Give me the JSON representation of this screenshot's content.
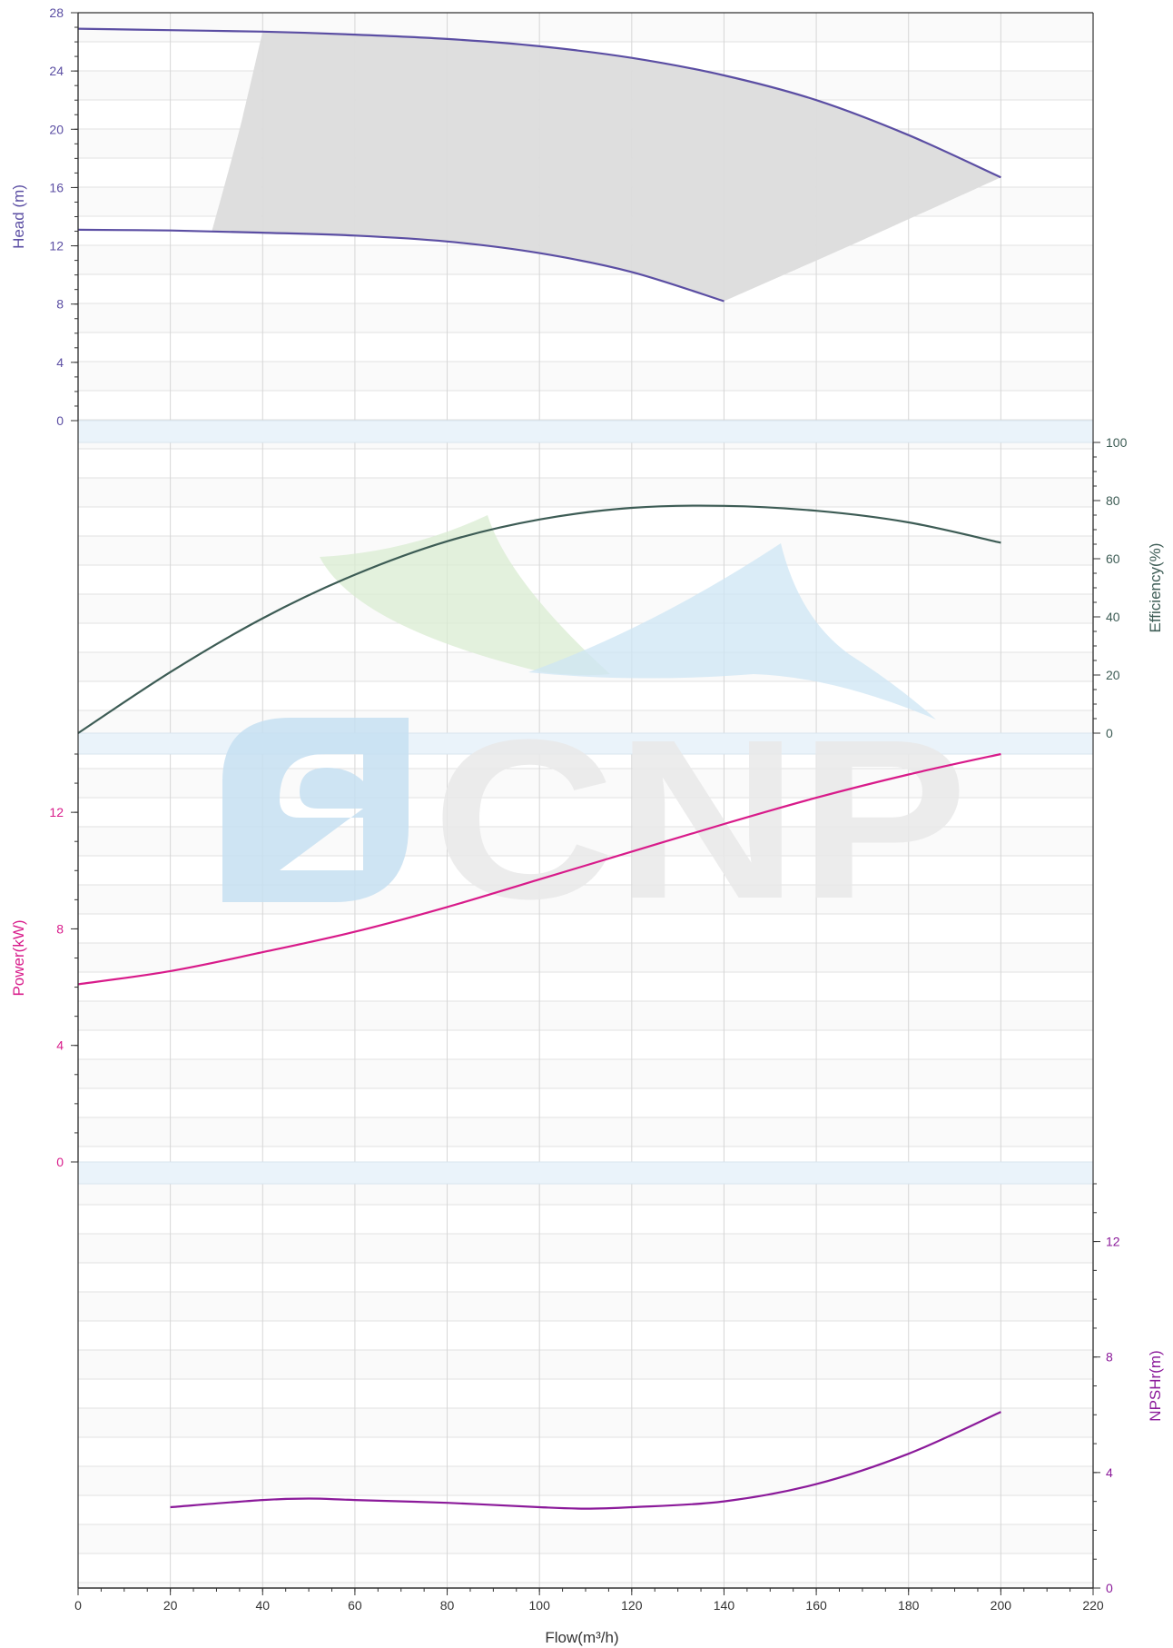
{
  "chart_data": {
    "type": "line",
    "x_axis": {
      "label": "Flow(m³/h)",
      "range": [
        0,
        220
      ],
      "ticks": [
        0,
        20,
        40,
        60,
        80,
        100,
        120,
        140,
        160,
        180,
        200,
        220
      ]
    },
    "panels": [
      {
        "id": "head",
        "ylabel": "Head (m)",
        "axis_side": "left",
        "color": "#5b4ea3",
        "ylim": [
          0,
          28
        ],
        "ticks": [
          0,
          4,
          8,
          12,
          16,
          20,
          24,
          28
        ],
        "series": [
          {
            "x": [
              0,
              20,
              40,
              60,
              80,
              100,
              120,
              140,
              160,
              180,
              200
            ],
            "y": [
              26.9,
              26.8,
              26.7,
              26.5,
              26.2,
              25.7,
              24.9,
              23.7,
              22.0,
              19.6,
              16.7
            ]
          },
          {
            "x": [
              0,
              20,
              40,
              60,
              80,
              100,
              120,
              140
            ],
            "y": [
              13.1,
              13.05,
              12.9,
              12.7,
              12.3,
              11.5,
              10.2,
              8.2
            ]
          }
        ],
        "operating_region": {
          "color": "#dcdcdc",
          "upper": {
            "x": [
              40,
              60,
              80,
              100,
              120,
              140,
              160,
              180,
              200
            ],
            "y": [
              26.7,
              26.5,
              26.2,
              25.7,
              24.9,
              23.7,
              22.0,
              19.6,
              16.7
            ]
          },
          "right_edge": {
            "x": [
              200,
              170,
              140
            ],
            "y": [
              16.7,
              12.4,
              8.2
            ]
          },
          "lower": {
            "x": [
              140,
              120,
              100,
              80,
              60,
              40,
              29
            ],
            "y": [
              8.2,
              10.2,
              11.5,
              12.3,
              12.7,
              12.9,
              13.0
            ]
          },
          "left_edge": {
            "x": [
              29,
              35,
              40
            ],
            "y": [
              13.0,
              20,
              26.7
            ]
          }
        }
      },
      {
        "id": "efficiency",
        "ylabel": "Efficiency(%)",
        "axis_side": "right",
        "color": "#3d5c55",
        "ylim": [
          0,
          100
        ],
        "ticks": [
          0,
          20,
          40,
          60,
          80,
          100
        ],
        "series": [
          {
            "x": [
              0,
              20,
              40,
              60,
              80,
              100,
              120,
              140,
              160,
              180,
              200
            ],
            "y": [
              0,
              21,
              39.5,
              54.5,
              66,
              73.5,
              77.5,
              78.2,
              76.5,
              72.5,
              65.5
            ]
          }
        ]
      },
      {
        "id": "power",
        "ylabel": "Power(kW)",
        "axis_side": "left",
        "color": "#d81b8a",
        "ylim": [
          0,
          14
        ],
        "ticks": [
          0,
          4,
          8,
          12
        ],
        "series": [
          {
            "x": [
              0,
              20,
              40,
              60,
              80,
              100,
              120,
              140,
              160,
              180,
              200
            ],
            "y": [
              6.1,
              6.55,
              7.2,
              7.9,
              8.75,
              9.7,
              10.65,
              11.6,
              12.5,
              13.3,
              14.0
            ]
          }
        ]
      },
      {
        "id": "npshr",
        "ylabel": "NPSHr(m)",
        "axis_side": "right",
        "color": "#8b1a9a",
        "ylim": [
          0,
          14
        ],
        "ticks": [
          0,
          4,
          8,
          12
        ],
        "series": [
          {
            "x": [
              20,
              40,
              50,
              60,
              80,
              100,
              110,
              120,
              140,
              160,
              180,
              200
            ],
            "y": [
              2.8,
              3.05,
              3.1,
              3.05,
              2.95,
              2.8,
              2.75,
              2.8,
              3.0,
              3.6,
              4.65,
              6.1
            ]
          }
        ]
      }
    ],
    "grid": true
  },
  "watermark": {
    "text": "CNP"
  }
}
